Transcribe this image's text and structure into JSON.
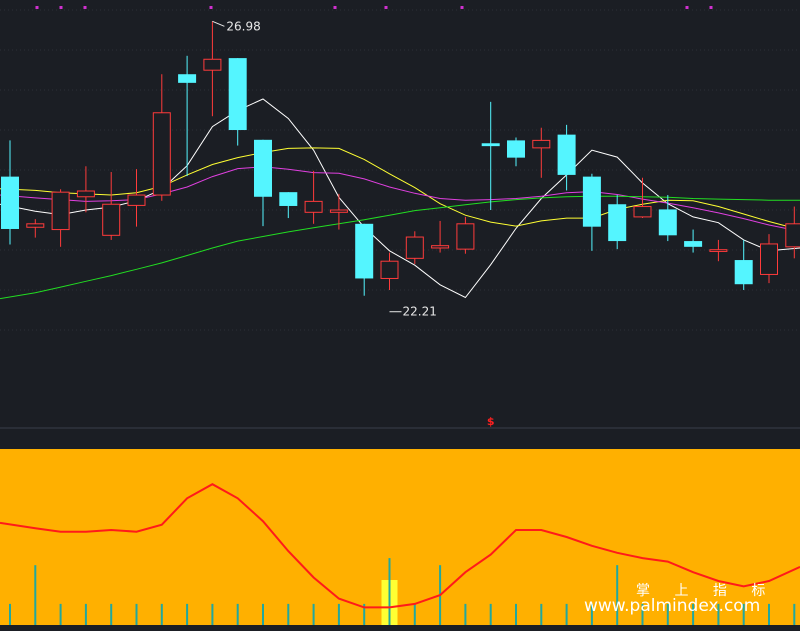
{
  "watermark": {
    "cn": "掌 上 指 标",
    "url": "www.palmindex.com"
  },
  "signal_marker": "$",
  "colors": {
    "background": "#1b1e24",
    "up": "#ff3b3b",
    "down": "#54f5ff",
    "ma5": "#ffffff",
    "ma10": "#ffff33",
    "ma20": "#e040e0",
    "ma60": "#22dd22",
    "indicator_bg": "#ffb000",
    "indicator_line": "#ff1a1a",
    "indicator_bar": "#20a8a0",
    "highlight": "#ffff33"
  },
  "chart_data": {
    "type": "candlestick",
    "title": "",
    "xlabel": "",
    "ylabel": "",
    "ylim": [
      20.05,
      27.35
    ],
    "annotations": [
      {
        "text": "26.98",
        "index": 8,
        "value": 26.98,
        "kind": "high"
      },
      {
        "text": "22.21",
        "index": 15,
        "value": 22.21,
        "kind": "low"
      }
    ],
    "candles": [
      {
        "o": 24.28,
        "h": 24.91,
        "l": 23.1,
        "c": 23.37,
        "up": false
      },
      {
        "o": 23.4,
        "h": 23.54,
        "l": 23.22,
        "c": 23.46,
        "up": true
      },
      {
        "o": 23.36,
        "h": 24.06,
        "l": 23.06,
        "c": 24.01,
        "up": true
      },
      {
        "o": 23.93,
        "h": 24.46,
        "l": 23.66,
        "c": 24.03,
        "up": true
      },
      {
        "o": 23.26,
        "h": 24.36,
        "l": 23.18,
        "c": 23.8,
        "up": true
      },
      {
        "o": 23.78,
        "h": 24.41,
        "l": 23.41,
        "c": 23.96,
        "up": true
      },
      {
        "o": 23.96,
        "h": 26.06,
        "l": 23.86,
        "c": 25.39,
        "up": true
      },
      {
        "o": 25.91,
        "h": 26.38,
        "l": 24.29,
        "c": 26.06,
        "up": false
      },
      {
        "o": 26.13,
        "h": 26.98,
        "l": 25.33,
        "c": 26.32,
        "up": true
      },
      {
        "o": 26.34,
        "h": 26.34,
        "l": 24.82,
        "c": 25.09,
        "up": false
      },
      {
        "o": 24.92,
        "h": 24.92,
        "l": 23.42,
        "c": 23.93,
        "up": false
      },
      {
        "o": 24.01,
        "h": 24.01,
        "l": 23.56,
        "c": 23.77,
        "up": false
      },
      {
        "o": 23.66,
        "h": 24.38,
        "l": 23.46,
        "c": 23.85,
        "up": true
      },
      {
        "o": 23.66,
        "h": 23.98,
        "l": 23.36,
        "c": 23.7,
        "up": true
      },
      {
        "o": 23.46,
        "h": 23.46,
        "l": 22.21,
        "c": 22.51,
        "up": false
      },
      {
        "o": 22.51,
        "h": 22.96,
        "l": 22.31,
        "c": 22.81,
        "up": true
      },
      {
        "o": 22.86,
        "h": 23.33,
        "l": 22.76,
        "c": 23.23,
        "up": true
      },
      {
        "o": 23.04,
        "h": 23.51,
        "l": 22.96,
        "c": 23.08,
        "up": true
      },
      {
        "o": 23.02,
        "h": 23.58,
        "l": 22.94,
        "c": 23.46,
        "up": true
      },
      {
        "o": 24.86,
        "h": 25.58,
        "l": 23.7,
        "c": 24.81,
        "up": false
      },
      {
        "o": 24.91,
        "h": 24.96,
        "l": 24.46,
        "c": 24.61,
        "up": false
      },
      {
        "o": 24.78,
        "h": 25.13,
        "l": 24.26,
        "c": 24.91,
        "up": true
      },
      {
        "o": 25.01,
        "h": 25.18,
        "l": 24.04,
        "c": 24.31,
        "up": false
      },
      {
        "o": 24.28,
        "h": 24.33,
        "l": 22.99,
        "c": 23.41,
        "up": false
      },
      {
        "o": 23.8,
        "h": 23.96,
        "l": 23.02,
        "c": 23.16,
        "up": false
      },
      {
        "o": 23.58,
        "h": 24.26,
        "l": 23.56,
        "c": 23.76,
        "up": true
      },
      {
        "o": 23.71,
        "h": 23.96,
        "l": 23.16,
        "c": 23.26,
        "up": false
      },
      {
        "o": 23.16,
        "h": 23.36,
        "l": 22.96,
        "c": 23.06,
        "up": false
      },
      {
        "o": 22.98,
        "h": 23.18,
        "l": 22.81,
        "c": 23.01,
        "up": true
      },
      {
        "o": 22.83,
        "h": 23.18,
        "l": 22.31,
        "c": 22.41,
        "up": false
      },
      {
        "o": 22.58,
        "h": 23.28,
        "l": 22.43,
        "c": 23.11,
        "up": true
      },
      {
        "o": 23.06,
        "h": 23.76,
        "l": 22.86,
        "c": 23.46,
        "up": true
      }
    ],
    "series": [
      {
        "name": "",
        "role": "ma5",
        "values": [
          23.8,
          23.68,
          23.62,
          23.7,
          23.75,
          23.86,
          24.06,
          24.47,
          25.15,
          25.43,
          25.63,
          25.29,
          24.74,
          23.92,
          23.4,
          22.99,
          22.74,
          22.4,
          22.18,
          22.75,
          23.38,
          23.9,
          24.31,
          24.74,
          24.62,
          24.17,
          23.81,
          23.58,
          23.48,
          23.18,
          22.99,
          23.04
        ]
      },
      {
        "name": "",
        "role": "ma10",
        "values": [
          24.07,
          24.04,
          24.0,
          23.98,
          23.96,
          24.0,
          24.11,
          24.31,
          24.49,
          24.61,
          24.7,
          24.77,
          24.78,
          24.77,
          24.58,
          24.33,
          24.09,
          23.81,
          23.61,
          23.49,
          23.42,
          23.51,
          23.56,
          23.56,
          23.71,
          23.8,
          23.87,
          23.86,
          23.76,
          23.63,
          23.5,
          23.36
        ]
      },
      {
        "name": "",
        "role": "ma20",
        "values": [
          23.96,
          23.91,
          23.88,
          23.85,
          23.86,
          23.88,
          23.98,
          24.1,
          24.28,
          24.42,
          24.45,
          24.41,
          24.35,
          24.34,
          24.24,
          24.1,
          23.99,
          23.9,
          23.87,
          23.88,
          23.9,
          23.94,
          24.0,
          24.02,
          23.97,
          23.89,
          23.82,
          23.74,
          23.65,
          23.55,
          23.44,
          23.33
        ]
      },
      {
        "name": "",
        "role": "ma60",
        "values": [
          22.16,
          22.26,
          22.36,
          22.46,
          22.56,
          22.67,
          22.78,
          22.91,
          23.04,
          23.16,
          23.24,
          23.32,
          23.39,
          23.46,
          23.53,
          23.61,
          23.69,
          23.74,
          23.79,
          23.84,
          23.88,
          23.91,
          23.93,
          23.94,
          23.94,
          23.93,
          23.92,
          23.9,
          23.89,
          23.88,
          23.87,
          23.87
        ]
      }
    ],
    "indicator": {
      "ylim": [
        0,
        100
      ],
      "line": [
        58,
        55,
        53,
        53,
        54,
        53,
        57,
        72,
        80,
        72,
        59,
        42,
        27,
        15,
        10,
        10,
        12,
        17,
        30,
        40,
        54,
        54,
        50,
        45,
        41,
        38,
        36,
        30,
        25,
        22,
        25,
        33
      ],
      "bars": [
        12,
        34,
        12,
        12,
        12,
        12,
        12,
        12,
        12,
        12,
        12,
        12,
        12,
        12,
        12,
        38,
        12,
        34,
        12,
        12,
        12,
        12,
        12,
        12,
        34,
        12,
        12,
        12,
        12,
        12,
        12,
        12
      ],
      "highlight_index": 15,
      "signal_index": 19
    }
  }
}
